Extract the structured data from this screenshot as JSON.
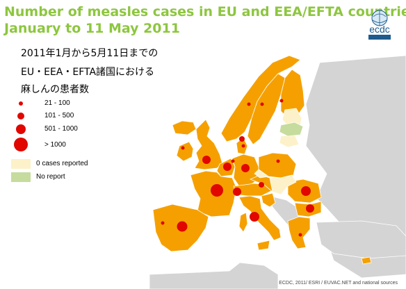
{
  "title": {
    "line1": "Number of measles cases in EU and EEA/EFTA countries",
    "line2": "January to 11 May 2011"
  },
  "japanese_caption": {
    "line1": "2011年1月から5月11日までの",
    "line2": "EU・EEA・EFTA諸国における",
    "line3": "麻しんの患者数"
  },
  "legend": {
    "size_classes": [
      {
        "label": "21 - 100"
      },
      {
        "label": "101 - 500"
      },
      {
        "label": "501 - 1000"
      },
      {
        "label": "> 1000"
      }
    ],
    "fill_classes": [
      {
        "label": "0 cases reported",
        "color": "#fdf1c9"
      },
      {
        "label": "No report",
        "color": "#c5dc9e"
      }
    ]
  },
  "colors": {
    "reporting_country": "#f5a000",
    "zero_cases": "#fdf1c9",
    "no_report": "#c5dc9e",
    "non_member": "#d4d4d4",
    "sea": "#ffffff",
    "case_dot": "#e10600",
    "title_text": "#8dc63f"
  },
  "logo": {
    "text": "ecdc"
  },
  "credit": "ECDC, 2011/ ESRI / EUVAC.NET and national sources"
}
